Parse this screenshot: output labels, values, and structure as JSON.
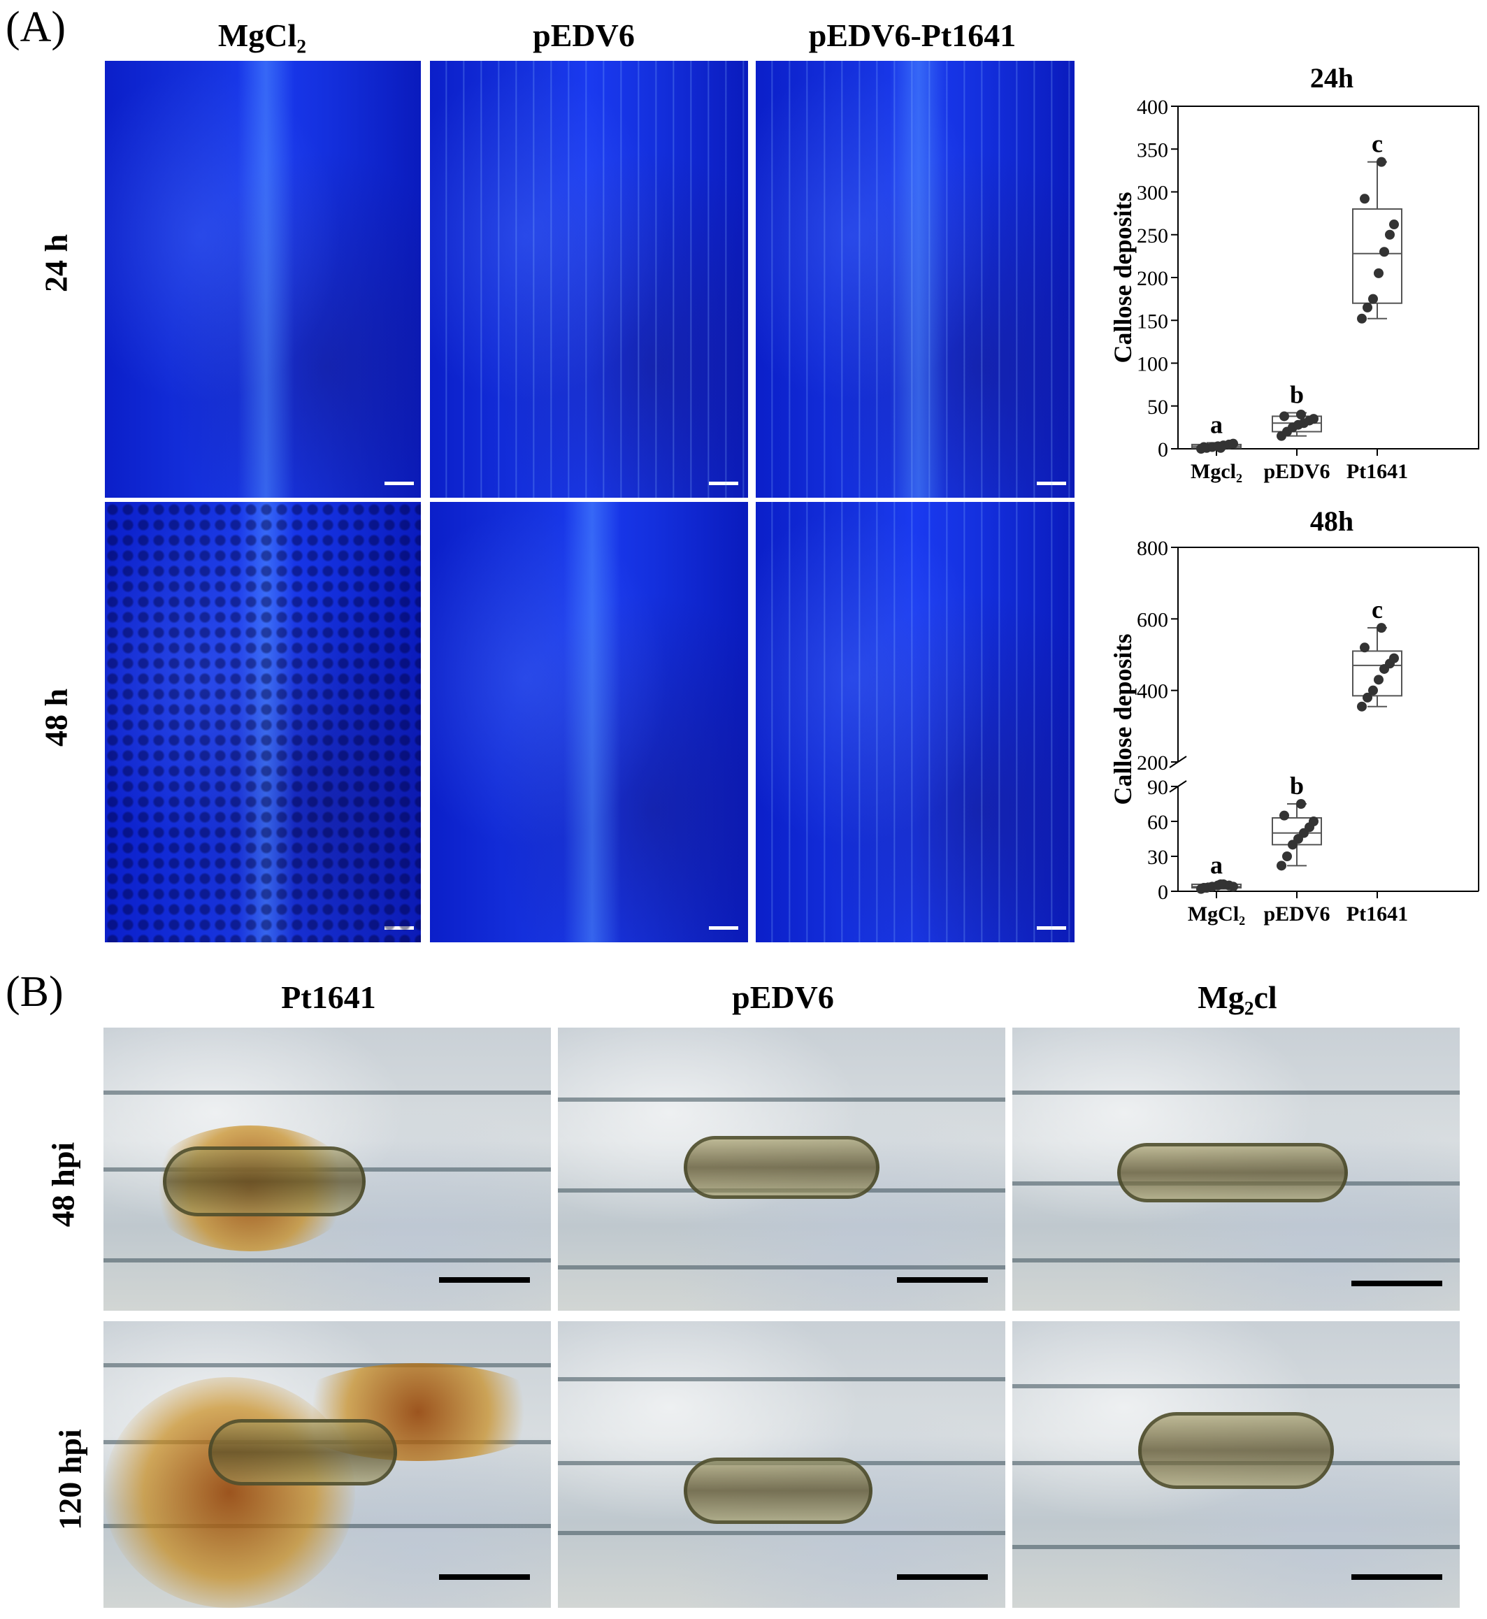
{
  "panelA": {
    "label": "(A)",
    "columns": [
      "MgCl₂",
      "pEDV6",
      "pEDV6-Pt1641"
    ],
    "rows": [
      "24 h",
      "48 h"
    ]
  },
  "panelB": {
    "label": "(B)",
    "columns": [
      "Pt1641",
      "pEDV6",
      "Mg₂cl"
    ],
    "rows": [
      "48 hpi",
      "120 hpi"
    ]
  },
  "chart_data": [
    {
      "type": "box",
      "title": "24h",
      "ylabel": "Callose deposits",
      "xlabel": "",
      "categories": [
        "Mgcl₂",
        "pEDV6",
        "Pt1641"
      ],
      "ylim": [
        0,
        400
      ],
      "yticks": [
        0,
        50,
        100,
        150,
        200,
        250,
        300,
        350,
        400
      ],
      "letters": [
        "a",
        "b",
        "c"
      ],
      "series": [
        {
          "points": [
            0,
            1,
            2,
            3,
            4,
            5,
            6,
            2,
            1
          ],
          "q1": 1,
          "median": 3,
          "q3": 5,
          "min": 0,
          "max": 7
        },
        {
          "points": [
            15,
            20,
            25,
            28,
            30,
            33,
            35,
            38,
            40
          ],
          "q1": 20,
          "median": 30,
          "q3": 38,
          "min": 15,
          "max": 42
        },
        {
          "points": [
            152,
            165,
            175,
            205,
            230,
            250,
            262,
            292,
            335
          ],
          "q1": 170,
          "median": 228,
          "q3": 280,
          "min": 152,
          "max": 335
        }
      ]
    },
    {
      "type": "box",
      "title": "48h",
      "ylabel": "Callose deposits",
      "xlabel": "",
      "categories": [
        "MgCl₂",
        "pEDV6",
        "Pt1641"
      ],
      "axis_break": [
        90,
        200
      ],
      "lower_ylim": [
        0,
        90
      ],
      "lower_yticks": [
        0,
        30,
        60,
        90
      ],
      "upper_ylim": [
        200,
        800
      ],
      "upper_yticks": [
        200,
        400,
        600,
        800
      ],
      "letters": [
        "a",
        "b",
        "c"
      ],
      "series": [
        {
          "points": [
            2,
            3,
            4,
            5,
            6,
            5,
            4,
            3,
            6
          ],
          "q1": 3,
          "median": 4,
          "q3": 6,
          "min": 2,
          "max": 7
        },
        {
          "points": [
            22,
            30,
            40,
            45,
            50,
            55,
            60,
            65,
            75
          ],
          "q1": 40,
          "median": 50,
          "q3": 63,
          "min": 22,
          "max": 75
        },
        {
          "points": [
            355,
            380,
            400,
            430,
            460,
            475,
            490,
            520,
            575
          ],
          "q1": 385,
          "median": 470,
          "q3": 510,
          "min": 355,
          "max": 575
        }
      ]
    }
  ]
}
